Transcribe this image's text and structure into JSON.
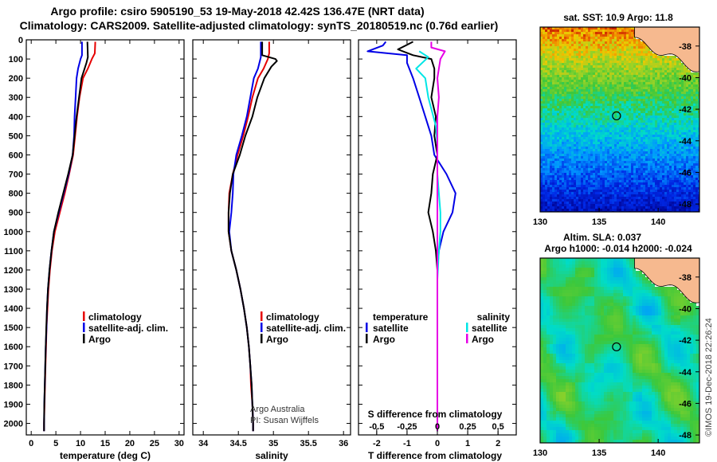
{
  "title_line1": "Argo profile: csiro 5905190_53 19-May-2018 42.42S 136.47E (NRT data)",
  "title_line2": "Climatology: CARS2009. Satellite-adjusted climatology: synTS_20180519.nc (0.76d earlier)",
  "credit_line1": "Argo Australia",
  "credit_line2": "PI: Susan Wijffels",
  "stamp": "©IMOS 19-Dec-2018 22:26:24",
  "colors": {
    "climatology": "#e60000",
    "satellite": "#0000e6",
    "argo": "#000000",
    "salinity_satellite": "#00e6e6",
    "salinity_argo": "#e600e6",
    "land": "#f6b98f"
  },
  "chart_data": [
    {
      "id": "temperature",
      "type": "line",
      "xlabel": "temperature (deg C)",
      "ylabel": "",
      "xlim": [
        -1,
        31
      ],
      "ylim": [
        2060,
        0
      ],
      "xticks": [
        "0",
        "5",
        "10",
        "15",
        "20",
        "25",
        "30"
      ],
      "yticks": [
        "0",
        "100",
        "200",
        "300",
        "400",
        "500",
        "600",
        "700",
        "800",
        "900",
        "1000",
        "1100",
        "1200",
        "1300",
        "1400",
        "1500",
        "1600",
        "1700",
        "1800",
        "1900",
        "2000"
      ],
      "legend": [
        "climatology",
        "satellite-adj. clim.",
        "Argo"
      ],
      "series": [
        {
          "name": "climatology",
          "color": "#e60000",
          "points": [
            [
              13,
              10
            ],
            [
              12.9,
              70
            ],
            [
              12.3,
              100
            ],
            [
              11.5,
              150
            ],
            [
              10.5,
              200
            ],
            [
              9.8,
              300
            ],
            [
              9.3,
              400
            ],
            [
              8.9,
              500
            ],
            [
              8.5,
              600
            ],
            [
              7.7,
              700
            ],
            [
              6.8,
              800
            ],
            [
              5.8,
              900
            ],
            [
              4.8,
              1000
            ],
            [
              4.2,
              1100
            ],
            [
              3.8,
              1200
            ],
            [
              3.5,
              1300
            ],
            [
              3.3,
              1400
            ],
            [
              3.1,
              1500
            ],
            [
              3.0,
              1600
            ],
            [
              2.9,
              1700
            ],
            [
              2.8,
              1800
            ],
            [
              2.7,
              1900
            ],
            [
              2.6,
              2000
            ],
            [
              2.6,
              2040
            ]
          ]
        },
        {
          "name": "satellite-adj. clim.",
          "color": "#0000e6",
          "points": [
            [
              10.3,
              10
            ],
            [
              10.3,
              80
            ],
            [
              10.0,
              100
            ],
            [
              9.5,
              150
            ],
            [
              9.2,
              200
            ],
            [
              9.0,
              300
            ],
            [
              8.8,
              400
            ],
            [
              8.7,
              500
            ],
            [
              8.4,
              600
            ],
            [
              7.6,
              700
            ],
            [
              6.6,
              800
            ],
            [
              5.6,
              900
            ],
            [
              4.6,
              1000
            ],
            [
              4.1,
              1100
            ],
            [
              3.7,
              1200
            ],
            [
              3.4,
              1300
            ],
            [
              3.2,
              1400
            ],
            [
              3.1,
              1500
            ],
            [
              2.95,
              1600
            ],
            [
              2.85,
              1700
            ],
            [
              2.75,
              1800
            ],
            [
              2.65,
              1900
            ],
            [
              2.6,
              2000
            ],
            [
              2.6,
              2040
            ]
          ]
        },
        {
          "name": "Argo",
          "color": "#000000",
          "points": [
            [
              11.4,
              10
            ],
            [
              11.5,
              90
            ],
            [
              11.2,
              120
            ],
            [
              10.2,
              200
            ],
            [
              9.7,
              300
            ],
            [
              9.2,
              400
            ],
            [
              8.8,
              500
            ],
            [
              8.4,
              600
            ],
            [
              7.5,
              700
            ],
            [
              6.5,
              800
            ],
            [
              5.5,
              900
            ],
            [
              4.6,
              1000
            ],
            [
              4.1,
              1100
            ],
            [
              3.7,
              1200
            ],
            [
              3.4,
              1300
            ],
            [
              3.2,
              1400
            ],
            [
              3.05,
              1500
            ],
            [
              2.95,
              1600
            ],
            [
              2.85,
              1700
            ],
            [
              2.75,
              1800
            ],
            [
              2.65,
              1900
            ],
            [
              2.6,
              2000
            ],
            [
              2.6,
              2040
            ]
          ]
        }
      ]
    },
    {
      "id": "salinity",
      "type": "line",
      "xlabel": "salinity",
      "xlim": [
        33.85,
        36.1
      ],
      "ylim": [
        2060,
        0
      ],
      "xticks": [
        "34",
        "34.5",
        "35",
        "35.5",
        "36"
      ],
      "legend": [
        "climatology",
        "satellite-adj. clim.",
        "Argo"
      ],
      "series": [
        {
          "name": "climatology",
          "color": "#e60000",
          "points": [
            [
              34.94,
              10
            ],
            [
              34.94,
              70
            ],
            [
              34.92,
              100
            ],
            [
              34.86,
              150
            ],
            [
              34.78,
              200
            ],
            [
              34.7,
              300
            ],
            [
              34.64,
              400
            ],
            [
              34.57,
              500
            ],
            [
              34.49,
              600
            ],
            [
              34.42,
              700
            ],
            [
              34.37,
              800
            ],
            [
              34.36,
              900
            ],
            [
              34.36,
              1000
            ],
            [
              34.4,
              1100
            ],
            [
              34.47,
              1200
            ],
            [
              34.53,
              1300
            ],
            [
              34.58,
              1400
            ],
            [
              34.62,
              1500
            ],
            [
              34.65,
              1600
            ],
            [
              34.67,
              1700
            ],
            [
              34.68,
              1800
            ],
            [
              34.7,
              1900
            ],
            [
              34.71,
              2000
            ],
            [
              34.71,
              2040
            ]
          ]
        },
        {
          "name": "satellite-adj. clim.",
          "color": "#0000e6",
          "points": [
            [
              34.82,
              10
            ],
            [
              34.82,
              90
            ],
            [
              34.78,
              150
            ],
            [
              34.72,
              200
            ],
            [
              34.67,
              300
            ],
            [
              34.62,
              400
            ],
            [
              34.55,
              500
            ],
            [
              34.47,
              600
            ],
            [
              34.43,
              700
            ],
            [
              34.42,
              800
            ],
            [
              34.4,
              900
            ],
            [
              34.37,
              1000
            ],
            [
              34.4,
              1100
            ],
            [
              34.47,
              1200
            ],
            [
              34.53,
              1300
            ],
            [
              34.58,
              1400
            ],
            [
              34.62,
              1500
            ],
            [
              34.65,
              1600
            ],
            [
              34.67,
              1700
            ],
            [
              34.69,
              1800
            ],
            [
              34.7,
              1900
            ],
            [
              34.71,
              2000
            ],
            [
              34.71,
              2040
            ]
          ]
        },
        {
          "name": "Argo",
          "color": "#000000",
          "points": [
            [
              34.84,
              10
            ],
            [
              34.84,
              80
            ],
            [
              35.03,
              100
            ],
            [
              35.05,
              110
            ],
            [
              34.97,
              140
            ],
            [
              34.87,
              200
            ],
            [
              34.77,
              300
            ],
            [
              34.7,
              400
            ],
            [
              34.6,
              500
            ],
            [
              34.52,
              600
            ],
            [
              34.42,
              700
            ],
            [
              34.38,
              800
            ],
            [
              34.36,
              900
            ],
            [
              34.36,
              1000
            ],
            [
              34.4,
              1100
            ],
            [
              34.47,
              1200
            ],
            [
              34.53,
              1300
            ],
            [
              34.58,
              1400
            ],
            [
              34.62,
              1500
            ],
            [
              34.65,
              1600
            ],
            [
              34.67,
              1700
            ],
            [
              34.69,
              1800
            ],
            [
              34.7,
              1900
            ],
            [
              34.71,
              2000
            ],
            [
              34.71,
              2040
            ]
          ]
        }
      ]
    },
    {
      "id": "differences",
      "type": "line",
      "xlabel": "T difference from climatology",
      "xlabel2": "S difference from climatology",
      "xlim": [
        -2.6,
        2.6
      ],
      "ylim": [
        2060,
        0
      ],
      "xticks": [
        "-2",
        "-1",
        "0",
        "1",
        "2"
      ],
      "xticks_s": [
        "-0.5",
        "-0.25",
        "0",
        "0.25",
        "0.5"
      ],
      "legend_left_title": "temperature",
      "legend_right_title": "salinity",
      "legend_left": [
        "satellite",
        "Argo"
      ],
      "legend_right": [
        "satellite",
        "Argo"
      ],
      "series": [
        {
          "name": "temperature satellite",
          "color": "#0000e6",
          "points": [
            [
              -1.7,
              10
            ],
            [
              -1.8,
              30
            ],
            [
              -2.3,
              60
            ],
            [
              -1.0,
              80
            ],
            [
              -1.0,
              120
            ],
            [
              -0.8,
              200
            ],
            [
              -0.6,
              300
            ],
            [
              -0.4,
              400
            ],
            [
              -0.2,
              500
            ],
            [
              -0.1,
              600
            ],
            [
              0.3,
              700
            ],
            [
              0.6,
              800
            ],
            [
              0.5,
              900
            ],
            [
              0.2,
              1000
            ],
            [
              0.05,
              1100
            ],
            [
              0,
              1200
            ],
            [
              0,
              1500
            ],
            [
              0,
              2040
            ]
          ]
        },
        {
          "name": "temperature Argo",
          "color": "#000000",
          "points": [
            [
              -0.8,
              10
            ],
            [
              -1.3,
              50
            ],
            [
              -0.8,
              80
            ],
            [
              -0.2,
              100
            ],
            [
              -0.1,
              150
            ],
            [
              -0.1,
              200
            ],
            [
              -0.2,
              300
            ],
            [
              -0.05,
              400
            ],
            [
              -0.1,
              500
            ],
            [
              0,
              600
            ],
            [
              -0.15,
              700
            ],
            [
              -0.2,
              800
            ],
            [
              -0.3,
              900
            ],
            [
              -0.15,
              1000
            ],
            [
              -0.05,
              1100
            ],
            [
              0,
              1200
            ],
            [
              0,
              1500
            ],
            [
              0,
              2040
            ]
          ]
        },
        {
          "name": "salinity satellite",
          "color": "#00e6e6",
          "points": [
            [
              -0.6,
              60
            ],
            [
              -0.3,
              90
            ],
            [
              -0.7,
              150
            ],
            [
              -0.4,
              200
            ],
            [
              -0.3,
              300
            ],
            [
              -0.05,
              450
            ],
            [
              0.0,
              550
            ],
            [
              0.0,
              700
            ],
            [
              0.1,
              900
            ],
            [
              0.1,
              1000
            ],
            [
              0.05,
              1100
            ],
            [
              0,
              1250
            ],
            [
              0,
              2040
            ]
          ]
        },
        {
          "name": "salinity Argo",
          "color": "#e600e6",
          "points": [
            [
              -0.2,
              10
            ],
            [
              -0.2,
              40
            ],
            [
              0.25,
              60
            ],
            [
              0.1,
              100
            ],
            [
              0.05,
              150
            ],
            [
              0.0,
              200
            ],
            [
              0.05,
              300
            ],
            [
              0.0,
              400
            ],
            [
              0.0,
              500
            ],
            [
              0,
              2040
            ]
          ]
        }
      ]
    },
    {
      "id": "sst-map",
      "type": "heatmap",
      "title": "sat. SST: 10.9 Argo: 11.8",
      "xlim": [
        130,
        143.5
      ],
      "ylim": [
        -48.5,
        -36.8
      ],
      "xticks": [
        "130",
        "135",
        "140"
      ],
      "yticks": [
        "-38",
        "-40",
        "-42",
        "-44",
        "-46",
        "-48"
      ],
      "marker": {
        "lon": 136.47,
        "lat": -42.42
      }
    },
    {
      "id": "sla-map",
      "type": "heatmap",
      "title": "Altim. SLA: 0.037",
      "subtitle": "Argo h1000: -0.014 h2000: -0.024",
      "xlim": [
        130,
        143.5
      ],
      "ylim": [
        -48.5,
        -36.8
      ],
      "xticks": [
        "130",
        "135",
        "140"
      ],
      "yticks": [
        "-38",
        "-40",
        "-42",
        "-44",
        "-46",
        "-48"
      ],
      "marker": {
        "lon": 136.47,
        "lat": -42.42
      }
    }
  ]
}
